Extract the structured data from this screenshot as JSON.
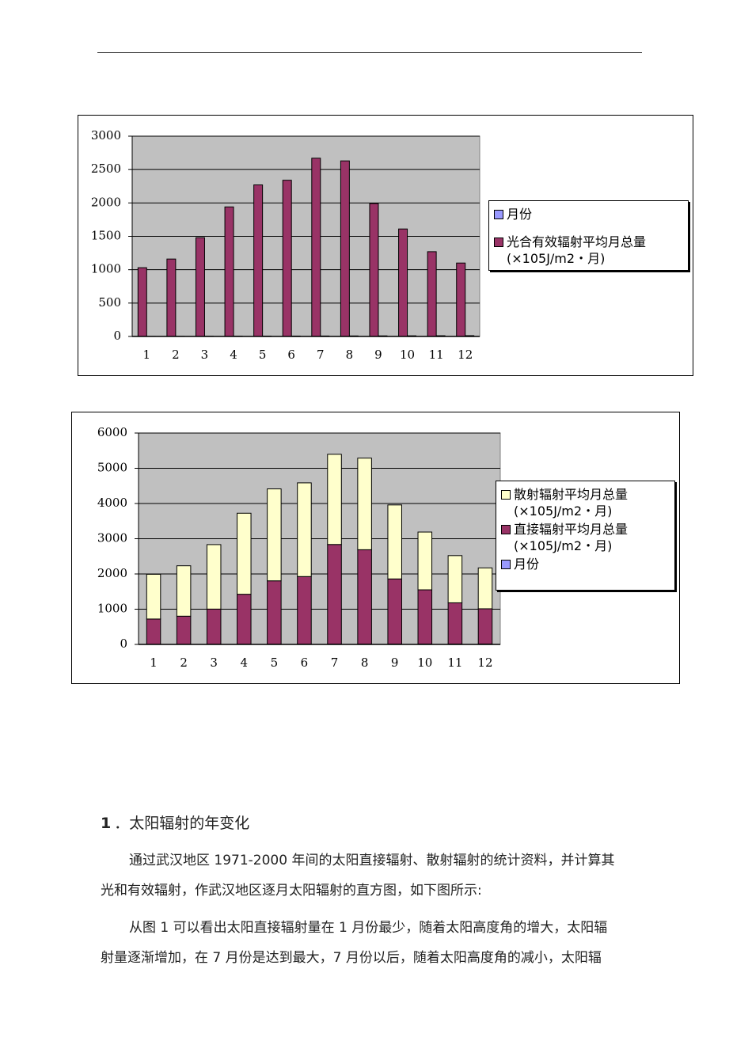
{
  "chart_data": [
    {
      "type": "bar",
      "stacked": false,
      "grid": true,
      "legend_position": "right",
      "categories": [
        "1",
        "2",
        "3",
        "4",
        "5",
        "6",
        "7",
        "8",
        "9",
        "10",
        "11",
        "12"
      ],
      "ylim": [
        0,
        3000
      ],
      "yticks": [
        0,
        500,
        1000,
        1500,
        2000,
        2500,
        3000
      ],
      "series": [
        {
          "name": "月份",
          "color": "#9999ff",
          "values": [
            1,
            2,
            3,
            4,
            5,
            6,
            7,
            8,
            9,
            10,
            11,
            12
          ]
        },
        {
          "name": "光合有效辐射平均月总量(×105J/m2・月)",
          "color": "#993366",
          "values": [
            1030,
            1160,
            1480,
            1940,
            2270,
            2340,
            2670,
            2630,
            1990,
            1610,
            1270,
            1100
          ]
        }
      ]
    },
    {
      "type": "bar",
      "stacked": true,
      "grid": true,
      "legend_position": "right",
      "categories": [
        "1",
        "2",
        "3",
        "4",
        "5",
        "6",
        "7",
        "8",
        "9",
        "10",
        "11",
        "12"
      ],
      "ylim": [
        0,
        6000
      ],
      "yticks": [
        0,
        1000,
        2000,
        3000,
        4000,
        5000,
        6000
      ],
      "series": [
        {
          "name": "月份",
          "color": "#9999ff",
          "values": [
            1,
            2,
            3,
            4,
            5,
            6,
            7,
            8,
            9,
            10,
            11,
            12
          ]
        },
        {
          "name": "直接辐射平均月总量(×105J/m2・月)",
          "color": "#993366",
          "values": [
            720,
            800,
            1000,
            1420,
            1800,
            1920,
            2830,
            2680,
            1850,
            1540,
            1170,
            1000
          ]
        },
        {
          "name": "散射辐射平均月总量(×105J/m2・月)",
          "color": "#ffffcc",
          "values": [
            1270,
            1430,
            1830,
            2300,
            2610,
            2660,
            2560,
            2600,
            2100,
            1640,
            1340,
            1160
          ]
        }
      ]
    }
  ],
  "document": {
    "heading": {
      "number": "1",
      "text": "．太阳辐射的年变化"
    },
    "paragraphs": [
      [
        "通过武汉地区 1971-2000 年间的太阳直接辐射、散射辐射的统计资料，并计算其",
        "光和有效辐射，作武汉地区逐月太阳辐射的直方图，如下图所示:"
      ],
      [
        "从图 1 可以看出太阳直接辐射量在 1 月份最少，随着太阳高度角的增大，太阳辐",
        "射量逐渐增加，在 7 月份是达到最大，7 月份以后，随着太阳高度角的减小，太阳辐"
      ]
    ]
  }
}
